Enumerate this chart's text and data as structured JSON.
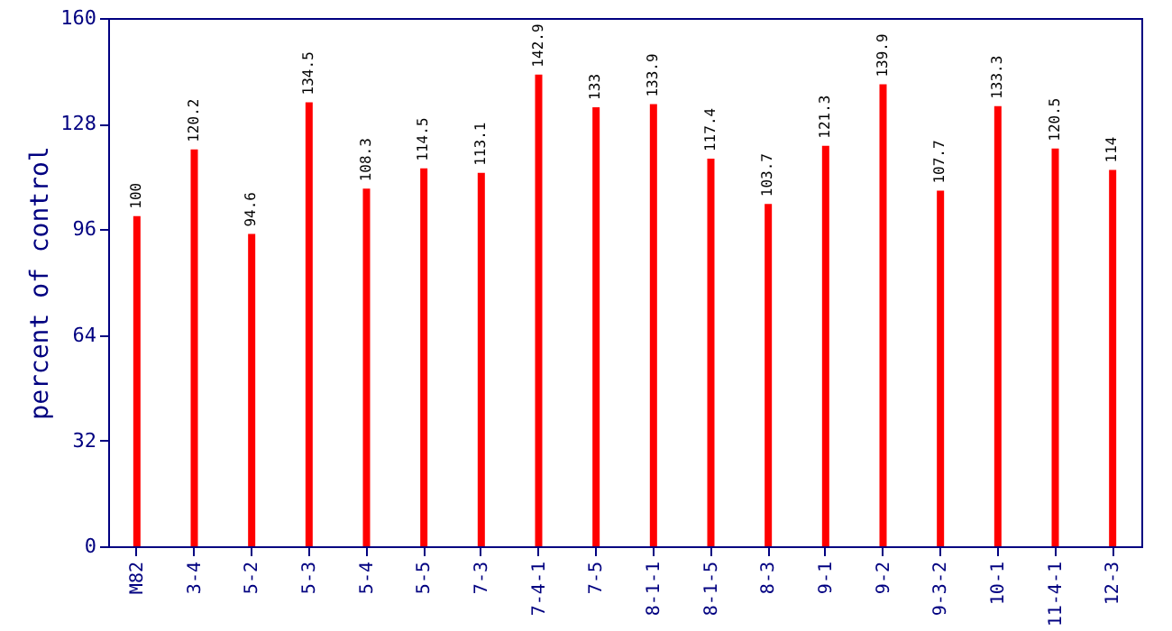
{
  "chart_data": {
    "type": "bar",
    "ylabel": "percent of control",
    "categories": [
      "M82",
      "3-4",
      "5-2",
      "5-3",
      "5-4",
      "5-5",
      "7-3",
      "7-4-1",
      "7-5",
      "8-1-1",
      "8-1-5",
      "8-3",
      "9-1",
      "9-2",
      "9-3-2",
      "10-1",
      "11-4-1",
      "12-3"
    ],
    "values": [
      100,
      120.2,
      94.6,
      134.5,
      108.3,
      114.5,
      113.1,
      142.9,
      133,
      133.9,
      117.4,
      103.7,
      121.3,
      139.9,
      107.7,
      133.3,
      120.5,
      114
    ],
    "color": "#ff0000",
    "ylim": [
      0,
      160
    ],
    "yticks": [
      0,
      32,
      64,
      96,
      128,
      160
    ],
    "data_labels": true
  }
}
